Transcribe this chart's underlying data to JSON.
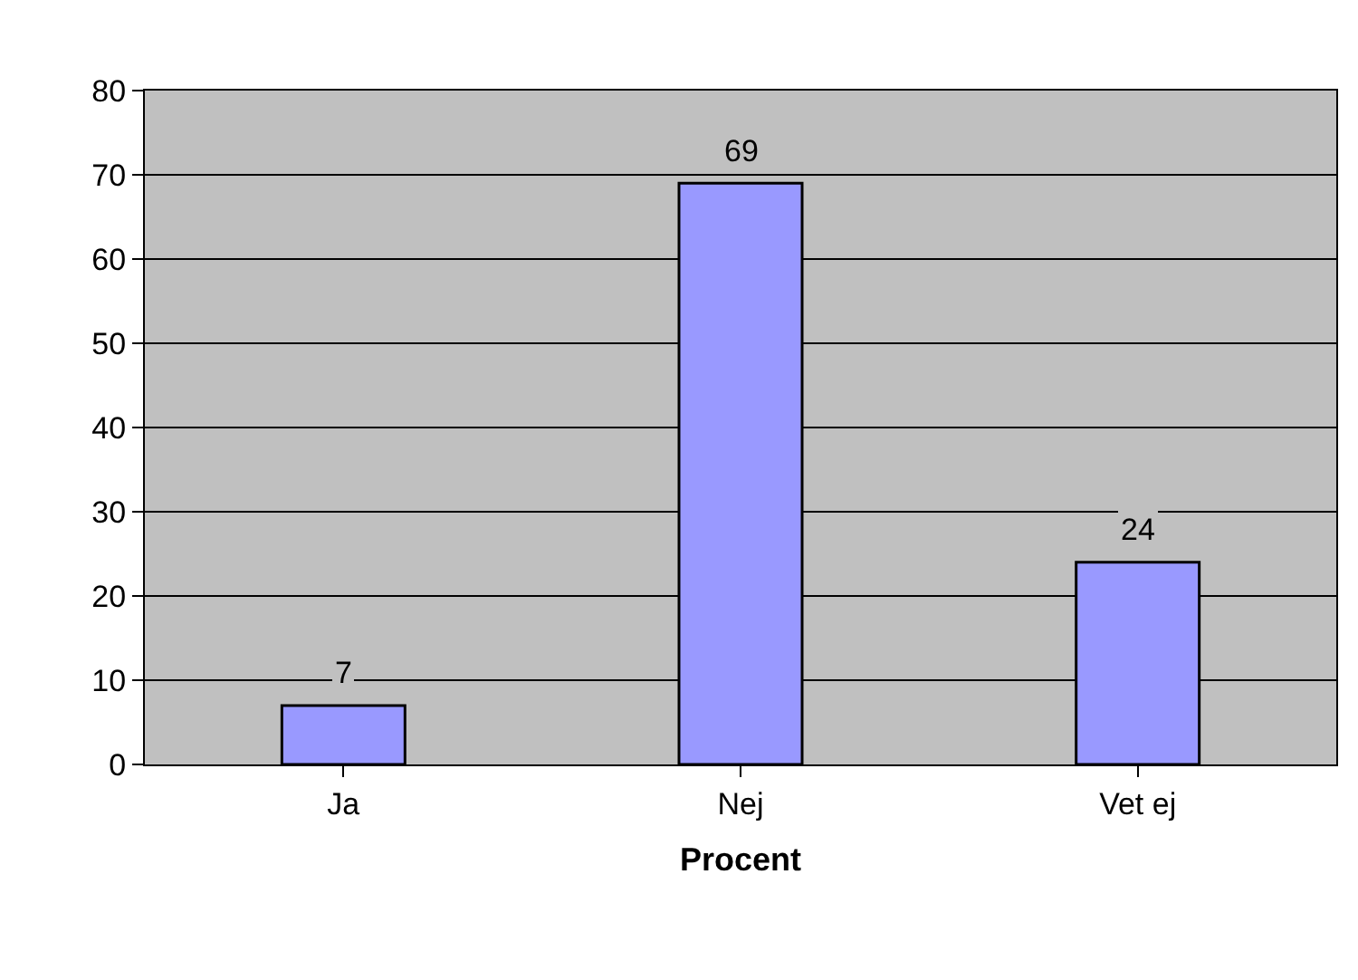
{
  "chart_data": {
    "type": "bar",
    "xlabel": "Procent",
    "categories": [
      "Ja",
      "Nej",
      "Vet ej"
    ],
    "values": [
      7,
      69,
      24
    ],
    "color": "#9999ff",
    "ylim": [
      0,
      80
    ],
    "yticks": [
      0,
      10,
      20,
      30,
      40,
      50,
      60,
      70,
      80
    ],
    "grid": "y",
    "data_labels": true,
    "legend": false
  }
}
